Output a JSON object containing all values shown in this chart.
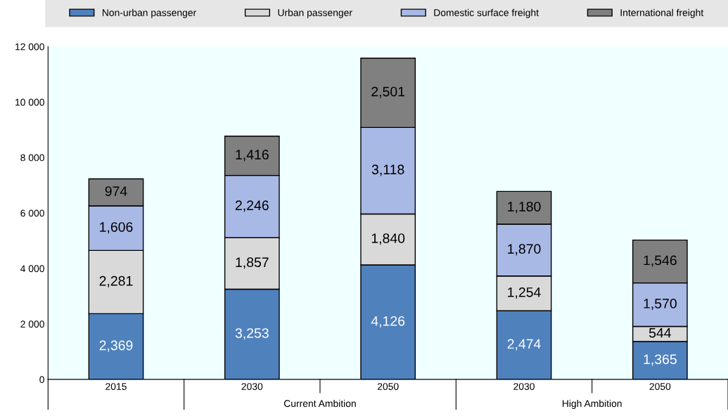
{
  "chart_data": {
    "type": "bar",
    "stacked": true,
    "categories": [
      "2015",
      "2030",
      "2050",
      "2030",
      "2050"
    ],
    "annotations": [
      "Current Ambition",
      "High Ambition"
    ],
    "series": [
      {
        "name": "Non-urban passenger",
        "color": "#4f81bd",
        "values": [
          2369,
          3253,
          4126,
          2474,
          1365
        ],
        "value_labels": [
          "2,369",
          "3,253",
          "4,126",
          "2,474",
          "1,365"
        ]
      },
      {
        "name": "Urban passenger",
        "color": "#d9d9d9",
        "values": [
          2281,
          1857,
          1840,
          1254,
          544
        ],
        "value_labels": [
          "2,281",
          "1,857",
          "1,840",
          "1,254",
          "544"
        ]
      },
      {
        "name": "Domestic surface freight",
        "color": "#a9b9e6",
        "values": [
          1606,
          2246,
          3118,
          1870,
          1570
        ],
        "value_labels": [
          "1,606",
          "2,246",
          "3,118",
          "1,870",
          "1,570"
        ]
      },
      {
        "name": "International freight",
        "color": "#808080",
        "values": [
          974,
          1416,
          2501,
          1180,
          1546
        ],
        "value_labels": [
          "974",
          "1,416",
          "2,501",
          "1,180",
          "1,546"
        ]
      }
    ],
    "ylim": [
      0,
      12000
    ],
    "yticks": [
      0,
      {
        "value": 2000,
        "label": "2 000"
      },
      {
        "value": 4000,
        "label": "4 000"
      },
      {
        "value": 6000,
        "label": "6 000"
      },
      {
        "value": 8000,
        "label": "8 000"
      },
      {
        "value": 10000,
        "label": "10 000"
      },
      {
        "value": 12000,
        "label": "12 000"
      }
    ],
    "legend": "top"
  }
}
